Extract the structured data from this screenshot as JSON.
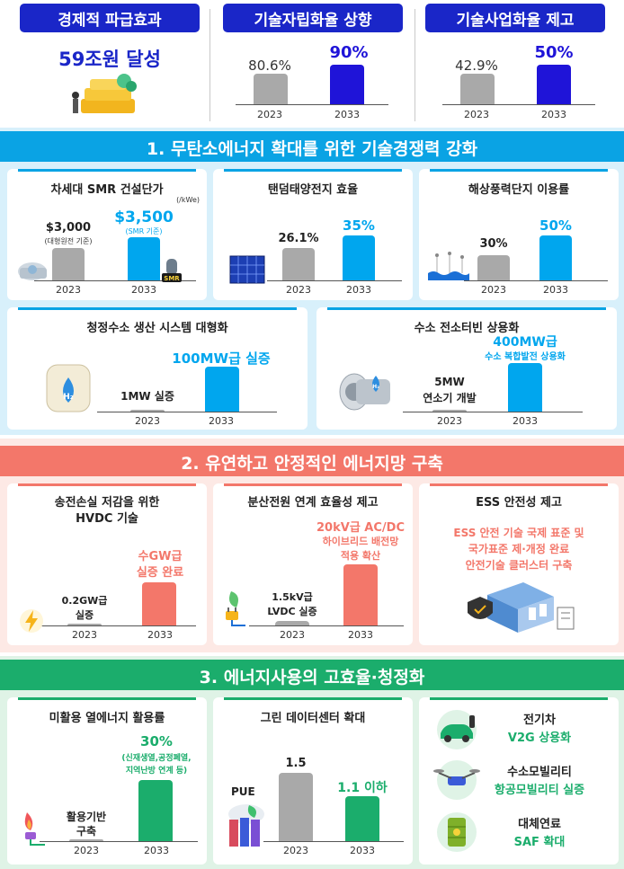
{
  "top": {
    "economic": {
      "title": "경제적 파급효과",
      "value": "59조원 달성"
    },
    "tech_independence": {
      "title": "기술자립화율 상향",
      "v2023": "80.6%",
      "v2033": "90%",
      "y1": "2023",
      "y2": "2033",
      "chart_data": {
        "type": "bar",
        "categories": [
          "2023",
          "2033"
        ],
        "values": [
          80.6,
          90
        ]
      }
    },
    "tech_commercial": {
      "title": "기술사업화율 제고",
      "v2023": "42.9%",
      "v2033": "50%",
      "y1": "2023",
      "y2": "2033",
      "chart_data": {
        "type": "bar",
        "categories": [
          "2023",
          "2033"
        ],
        "values": [
          42.9,
          50
        ]
      }
    }
  },
  "sec1": {
    "title": "1. 무탄소에너지 확대를 위한 기술경쟁력 강화",
    "smr": {
      "title": "차세대 SMR 건설단가",
      "unit": "(/kWe)",
      "v2023": "$3,000",
      "n2023": "(대형원전 기준)",
      "v2033": "$3,500",
      "n2033": "(SMR 기준)",
      "badge": "SMR",
      "y1": "2023",
      "y2": "2033"
    },
    "tandem": {
      "title": "탠덤태양전지 효율",
      "v2023": "26.1%",
      "v2033": "35%",
      "y1": "2023",
      "y2": "2033"
    },
    "wind": {
      "title": "해상풍력단지 이용률",
      "v2023": "30%",
      "v2033": "50%",
      "y1": "2023",
      "y2": "2033"
    },
    "h2prod": {
      "title": "청정수소 생산 시스템 대형화",
      "v2023": "1MW 실증",
      "v2033": "100MW급 실증",
      "badge": "H₂",
      "y1": "2023",
      "y2": "2033"
    },
    "h2turbine": {
      "title": "수소 전소터빈 상용화",
      "v2023_a": "5MW",
      "v2023_b": "연소기 개발",
      "v2033_a": "400MW급",
      "v2033_b": "수소 복합발전 상용화",
      "badge": "H₂",
      "y1": "2023",
      "y2": "2033"
    }
  },
  "sec2": {
    "title": "2. 유연하고 안정적인 에너지망 구축",
    "hvdc": {
      "title_a": "송전손실 저감을 위한",
      "title_b": "HVDC 기술",
      "v2023_a": "0.2GW급",
      "v2023_b": "실증",
      "v2033_a": "수GW급",
      "v2033_b": "실증 완료",
      "y1": "2023",
      "y2": "2033"
    },
    "distributed": {
      "title": "분산전원 연계 효율성 제고",
      "v2023_a": "1.5kV급",
      "v2023_b": "LVDC 실증",
      "v2033_a": "20kV급 AC/DC",
      "v2033_b": "하이브리드 배전망",
      "v2033_c": "적용 확산",
      "y1": "2023",
      "y2": "2033"
    },
    "ess": {
      "title": "ESS 안전성 제고",
      "l1": "ESS 안전 기술 국제 표준 및",
      "l2": "국가표준 제·개정 완료",
      "l3": "안전기술 클러스터 구축"
    }
  },
  "sec3": {
    "title": "3. 에너지사용의 고효율·청정화",
    "heat": {
      "title": "미활용 열에너지 활용률",
      "v2023_a": "활용기반",
      "v2023_b": "구축",
      "v2033": "30%",
      "n2033_a": "(신재생열,공정폐열,",
      "n2033_b": "지역난방 연계 등)",
      "y1": "2023",
      "y2": "2033"
    },
    "datacenter": {
      "title": "그린 데이터센터 확대",
      "pue": "PUE",
      "v2023": "1.5",
      "v2033": "1.1 이하",
      "y1": "2023",
      "y2": "2033"
    },
    "ev": {
      "title": "전기차",
      "value": "V2G 상용화"
    },
    "h2mob": {
      "title": "수소모빌리티",
      "value": "항공모빌리티 실증"
    },
    "fuel": {
      "title": "대체연료",
      "value": "SAF 확대"
    }
  },
  "colors": {
    "navy": "#1a26c8",
    "blue": "#00a6ee",
    "red": "#f3776a",
    "green": "#1bad6c",
    "gray": "#a9a9a9"
  }
}
